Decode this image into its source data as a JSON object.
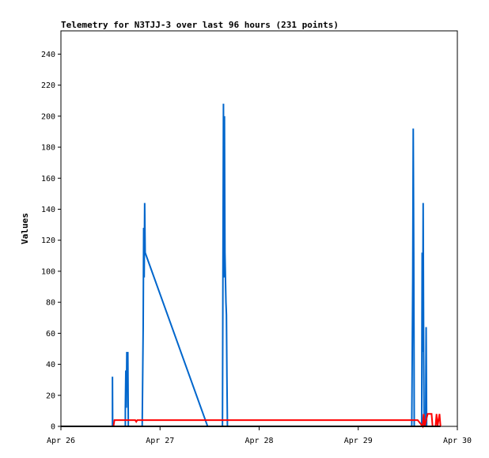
{
  "chart_data": {
    "type": "line",
    "title": "Telemetry for N3TJJ-3 over last 96 hours (231 points)",
    "ylabel": "Values",
    "xlabel": "",
    "ylim": [
      0,
      255
    ],
    "yticks": [
      0,
      20,
      40,
      60,
      80,
      100,
      120,
      140,
      160,
      180,
      200,
      220,
      240
    ],
    "xlim": [
      0,
      4
    ],
    "xticks": [
      {
        "v": 0,
        "label": "Apr 26"
      },
      {
        "v": 1,
        "label": "Apr 27"
      },
      {
        "v": 2,
        "label": "Apr 28"
      },
      {
        "v": 3,
        "label": "Apr 29"
      },
      {
        "v": 4,
        "label": "Apr 30"
      }
    ],
    "grid": false,
    "series": [
      {
        "color": "#0066cc",
        "points": [
          [
            0.52,
            0
          ],
          [
            0.52,
            32
          ],
          [
            0.522,
            0
          ],
          [
            0.65,
            0
          ],
          [
            0.65,
            12
          ],
          [
            0.655,
            36
          ],
          [
            0.66,
            12
          ],
          [
            0.665,
            48
          ],
          [
            0.67,
            36
          ],
          [
            0.675,
            48
          ],
          [
            0.68,
            0
          ],
          [
            0.82,
            0
          ],
          [
            0.83,
            64
          ],
          [
            0.835,
            128
          ],
          [
            0.84,
            96
          ],
          [
            0.845,
            144
          ],
          [
            0.85,
            112
          ],
          [
            1.48,
            0
          ],
          [
            1.49,
            0
          ],
          [
            1.63,
            0
          ],
          [
            1.635,
            104
          ],
          [
            1.64,
            208
          ],
          [
            1.645,
            96
          ],
          [
            1.65,
            200
          ],
          [
            1.655,
            112
          ],
          [
            1.66,
            96
          ],
          [
            1.665,
            80
          ],
          [
            1.67,
            72
          ],
          [
            1.675,
            32
          ],
          [
            1.68,
            0
          ],
          [
            3.54,
            0
          ],
          [
            3.545,
            48
          ],
          [
            3.55,
            96
          ],
          [
            3.555,
            192
          ],
          [
            3.56,
            112
          ],
          [
            3.565,
            0
          ],
          [
            3.64,
            0
          ],
          [
            3.645,
            112
          ],
          [
            3.65,
            48
          ],
          [
            3.655,
            144
          ],
          [
            3.66,
            48
          ],
          [
            3.665,
            0
          ],
          [
            3.68,
            0
          ],
          [
            3.685,
            64
          ],
          [
            3.69,
            0
          ]
        ]
      },
      {
        "color": "#ff0000",
        "points": [
          [
            0.53,
            0
          ],
          [
            0.54,
            4
          ],
          [
            0.62,
            4
          ],
          [
            0.7,
            4
          ],
          [
            0.75,
            4
          ],
          [
            0.76,
            3
          ],
          [
            0.77,
            4
          ],
          [
            1.0,
            4
          ],
          [
            1.5,
            4
          ],
          [
            2.0,
            4
          ],
          [
            2.5,
            4
          ],
          [
            3.0,
            4
          ],
          [
            3.5,
            4
          ],
          [
            3.6,
            4
          ],
          [
            3.65,
            0
          ],
          [
            3.66,
            8
          ],
          [
            3.67,
            0
          ],
          [
            3.7,
            8
          ],
          [
            3.74,
            8
          ],
          [
            3.75,
            0
          ],
          [
            3.78,
            0
          ],
          [
            3.79,
            8
          ],
          [
            3.8,
            0
          ],
          [
            3.82,
            8
          ],
          [
            3.83,
            0
          ]
        ]
      },
      {
        "color": "#000000",
        "points": [
          [
            0,
            0
          ],
          [
            3.83,
            0
          ]
        ]
      }
    ]
  }
}
